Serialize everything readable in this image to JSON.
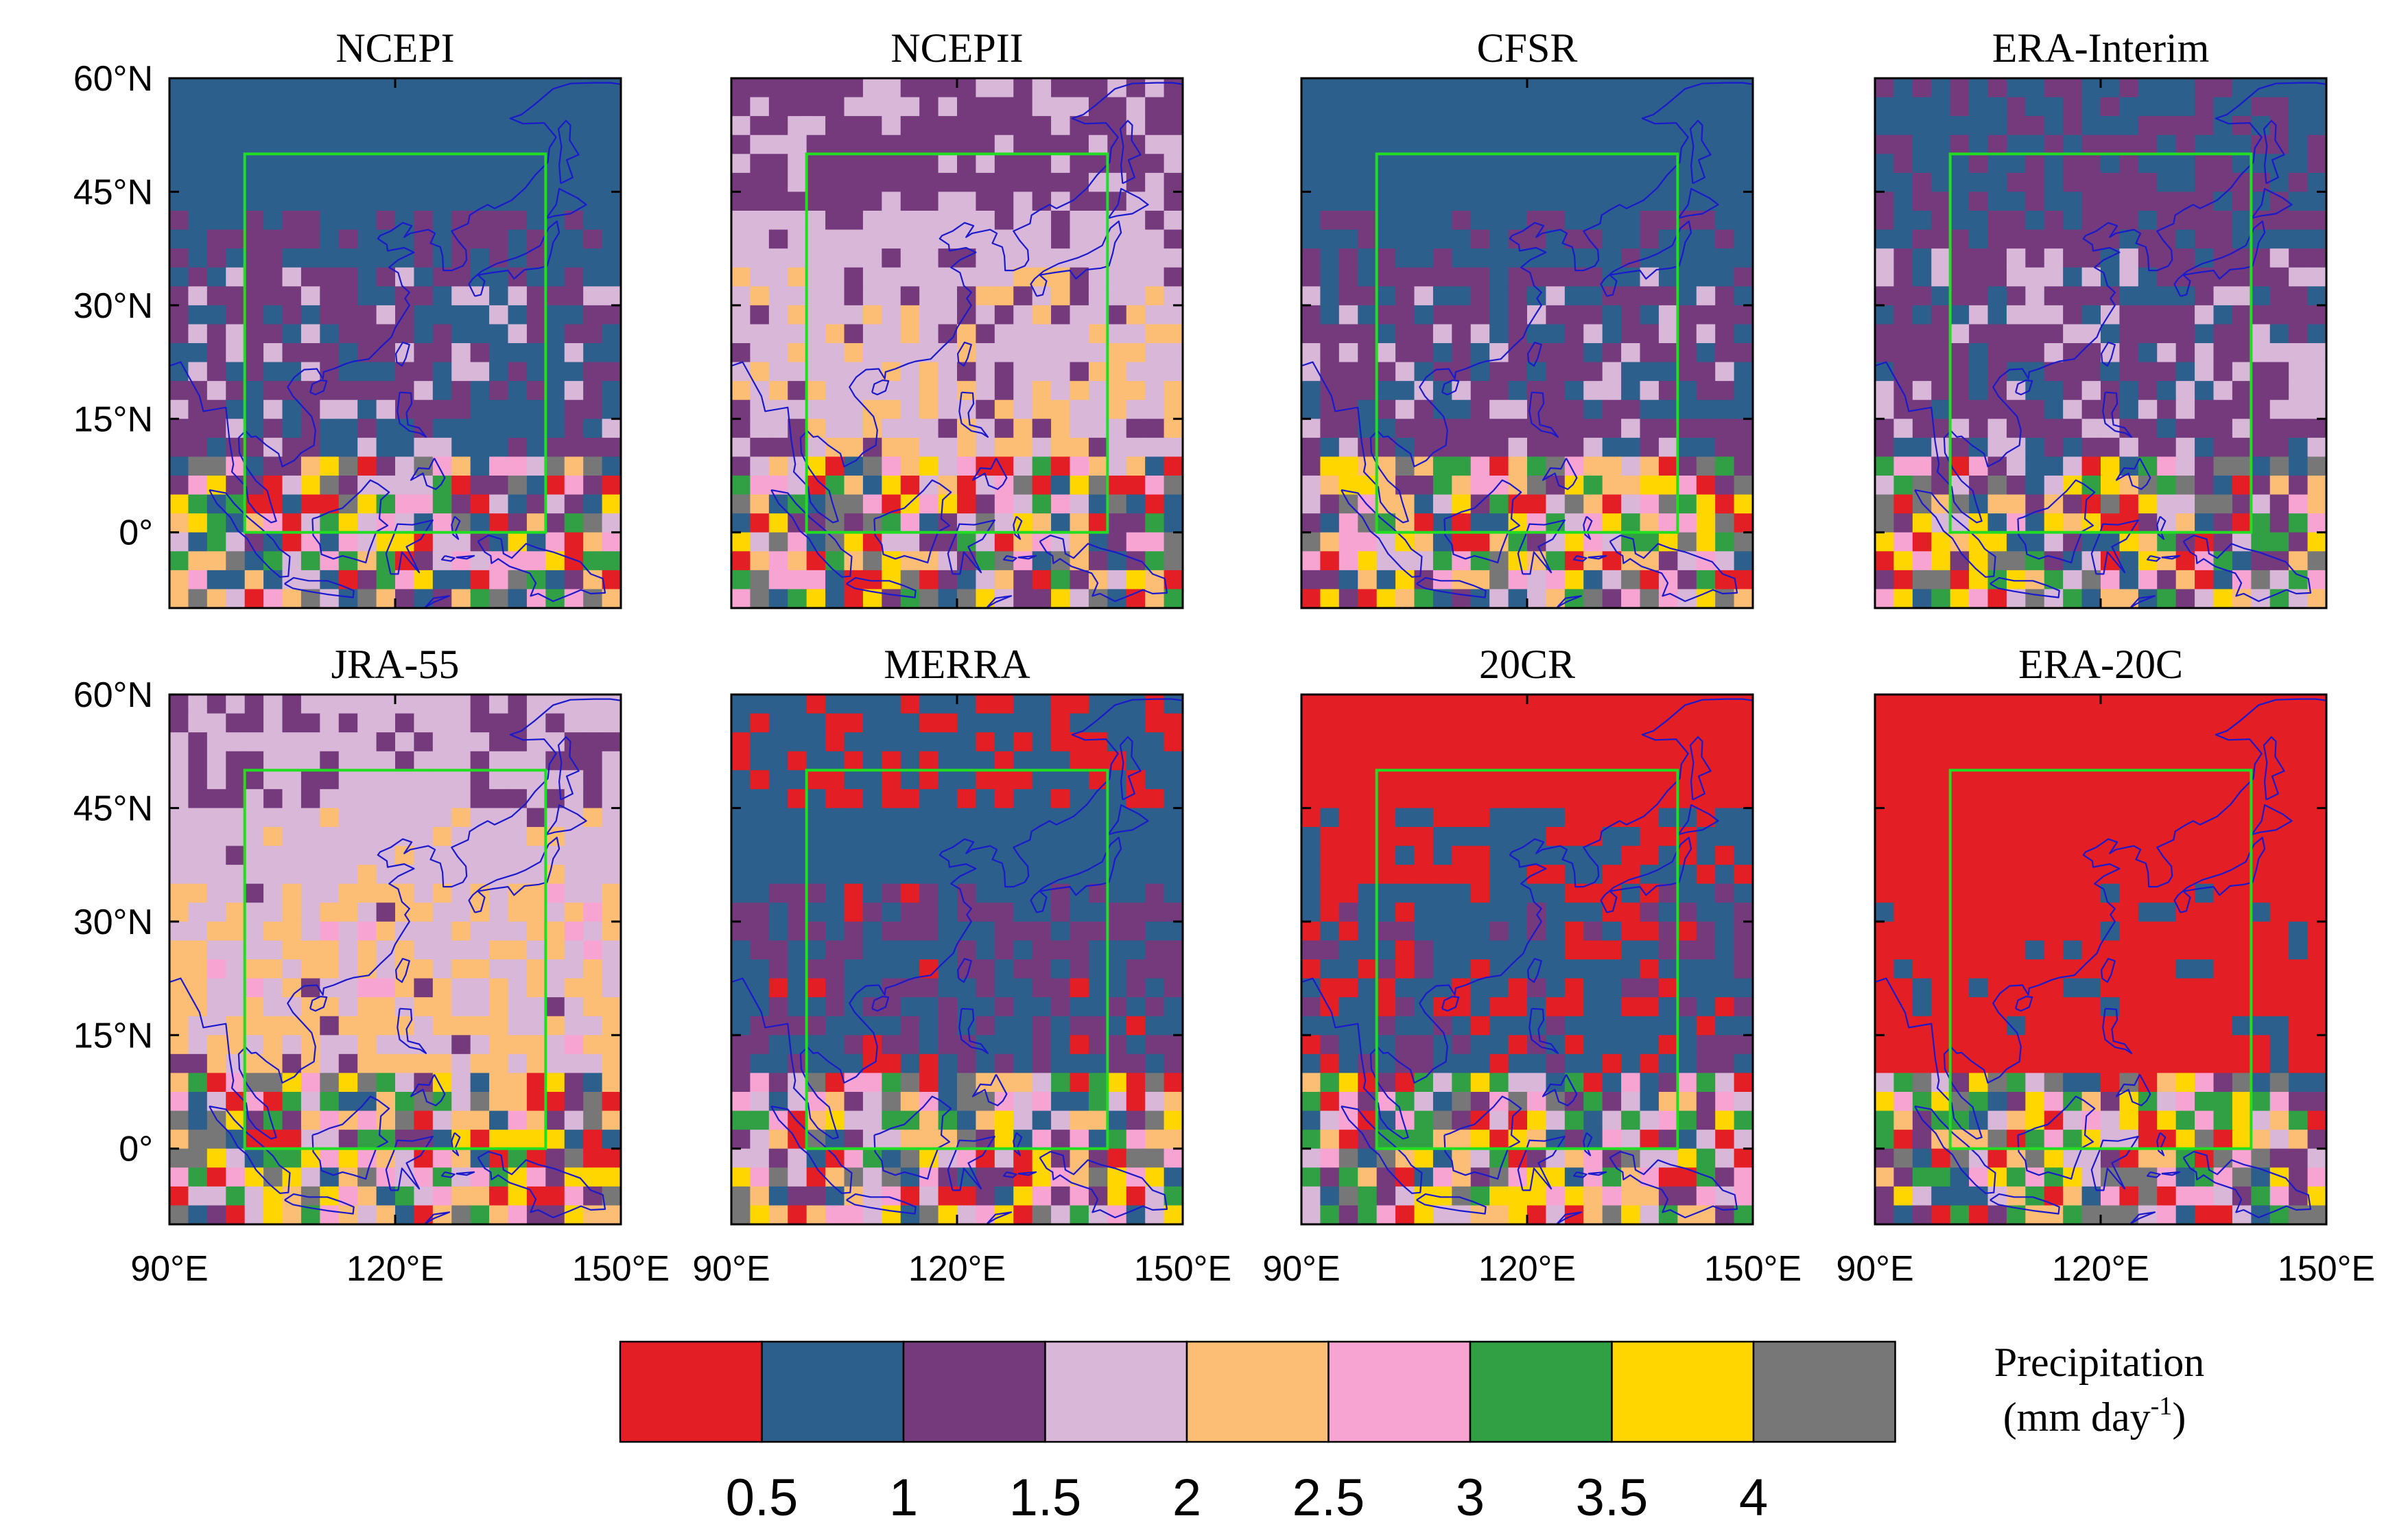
{
  "chart_data": {
    "type": "heatmap",
    "figure_type": "gridded precipitation maps (8 reanalysis datasets)",
    "region": {
      "lon_range": [
        90,
        150
      ],
      "lat_range": [
        -10,
        60
      ]
    },
    "box": {
      "lon": [
        100,
        140
      ],
      "lat": [
        0,
        50
      ]
    },
    "lat_ticks": [
      {
        "value": 60,
        "label": "60°N"
      },
      {
        "value": 45,
        "label": "45°N"
      },
      {
        "value": 30,
        "label": "30°N"
      },
      {
        "value": 15,
        "label": "15°N"
      },
      {
        "value": 0,
        "label": "0°"
      }
    ],
    "lon_ticks": [
      {
        "value": 90,
        "label": "90°E"
      },
      {
        "value": 120,
        "label": "120°E"
      },
      {
        "value": 150,
        "label": "150°E"
      }
    ],
    "colorbar": {
      "title_line1": "Precipitation",
      "title_line2_prefix": "(mm day",
      "title_line2_sup": "-1",
      "title_line2_suffix": ")",
      "colors": [
        "#e31e24",
        "#2c5f8c",
        "#743a7b",
        "#d8b7d9",
        "#fcbd74",
        "#f7a4d3",
        "#31a044",
        "#ffd600",
        "#777777"
      ],
      "thresholds": [
        "0.5",
        "1",
        "1.5",
        "2",
        "2.5",
        "3",
        "3.5",
        "4"
      ]
    },
    "box_color": "#22dd22",
    "coast_color": "#1a1acc",
    "panels": [
      {
        "title": "NCEPI",
        "seed": 11,
        "show_lat": true,
        "show_lon": false,
        "bias": [
          [
            42,
            0.65,
            -0.25
          ],
          [
            35,
            0.45,
            0.08
          ],
          [
            10,
            0.25,
            0.14
          ]
        ]
      },
      {
        "title": "NCEPII",
        "seed": 23,
        "show_lat": false,
        "show_lon": false,
        "bias": [
          [
            42,
            0.55,
            -0.25
          ],
          [
            35,
            0.45,
            0.1
          ],
          [
            10,
            0.2,
            0.3
          ]
        ]
      },
      {
        "title": "CFSR",
        "seed": 37,
        "show_lat": false,
        "show_lon": false,
        "bias": [
          [
            43,
            0.55,
            -0.25
          ],
          [
            35,
            0.35,
            0.06
          ],
          [
            10,
            0.2,
            0.16
          ]
        ]
      },
      {
        "title": "ERA-Interim",
        "seed": 41,
        "show_lat": false,
        "show_lon": false,
        "bias": [
          [
            45,
            1.2,
            -0.3
          ],
          [
            38,
            0.5,
            0.02
          ],
          [
            10,
            0.2,
            0.18
          ]
        ]
      },
      {
        "title": "JRA-55",
        "seed": 53,
        "show_lat": true,
        "show_lon": true,
        "bias": [
          [
            45,
            1.0,
            -0.3
          ],
          [
            35,
            0.5,
            0.05
          ],
          [
            10,
            0.25,
            0.32
          ]
        ]
      },
      {
        "title": "MERRA",
        "seed": 67,
        "show_lat": false,
        "show_lon": true,
        "bias": [
          [
            45,
            0.9,
            -0.3
          ],
          [
            35,
            0.4,
            0.05
          ],
          [
            10,
            0.2,
            0.1
          ]
        ]
      },
      {
        "title": "20CR",
        "seed": 71,
        "show_lat": false,
        "show_lon": true,
        "bias": [
          [
            45,
            0.45,
            -0.15
          ],
          [
            35,
            0.4,
            0.0
          ],
          [
            10,
            0.2,
            0.06
          ]
        ]
      },
      {
        "title": "ERA-20C",
        "seed": 83,
        "show_lat": false,
        "show_lon": true,
        "bias": [
          [
            45,
            0.95,
            -0.3
          ],
          [
            35,
            0.3,
            0.0
          ],
          [
            10,
            0.15,
            -0.02
          ]
        ]
      }
    ]
  }
}
